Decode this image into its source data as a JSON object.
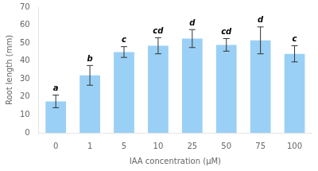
{
  "chart_data": {
    "type": "bar",
    "xlabel": "IAA concentration (μM)",
    "ylabel": "Root length (mm)",
    "categories": [
      "0",
      "1",
      "5",
      "10",
      "25",
      "50",
      "75",
      "100"
    ],
    "values": [
      17.5,
      32.0,
      45.0,
      48.5,
      52.5,
      49.0,
      51.5,
      44.0
    ],
    "errors": [
      3.5,
      5.5,
      3.0,
      4.5,
      5.0,
      3.5,
      7.5,
      4.5
    ],
    "significance_labels": [
      "a",
      "b",
      "c",
      "cd",
      "d",
      "cd",
      "d",
      "c"
    ],
    "ylim": [
      0,
      70
    ],
    "yticks": [
      0,
      10,
      20,
      30,
      40,
      50,
      60,
      70
    ],
    "grid": false
  }
}
